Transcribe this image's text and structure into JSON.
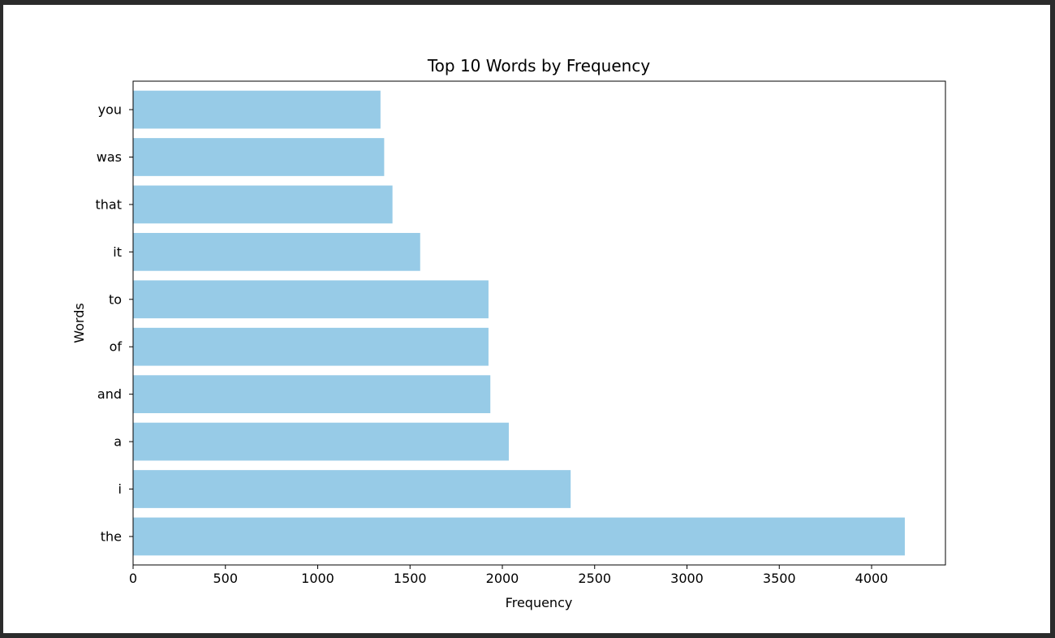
{
  "chart_data": {
    "type": "bar",
    "orientation": "horizontal",
    "title": "Top 10 Words by Frequency",
    "xlabel": "Frequency",
    "ylabel": "Words",
    "categories": [
      "the",
      "i",
      "a",
      "and",
      "of",
      "to",
      "it",
      "that",
      "was",
      "you"
    ],
    "values": [
      4180,
      2370,
      2035,
      1935,
      1925,
      1925,
      1555,
      1405,
      1360,
      1340
    ],
    "xlim": [
      0,
      4400
    ],
    "xticks": [
      0,
      500,
      1000,
      1500,
      2000,
      2500,
      3000,
      3500,
      4000
    ],
    "bar_color": "#97cbe7",
    "grid": false,
    "legend": "none"
  }
}
